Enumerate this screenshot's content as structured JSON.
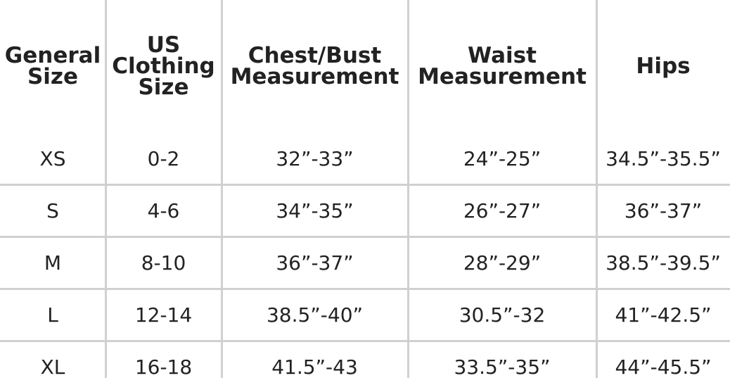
{
  "table": {
    "header": [
      "General Size",
      "US Clothing Size",
      "Chest/Bust Measurement",
      "Waist Measurement",
      "Hips"
    ],
    "rows": [
      [
        "XS",
        "0-2",
        "32”-33”",
        "24”-25”",
        "34.5”-35.5”"
      ],
      [
        "S",
        "4-6",
        "34”-35”",
        "26”-27”",
        "36”-37”"
      ],
      [
        "M",
        "8-10",
        "36”-37”",
        "28”-29”",
        "38.5”-39.5”"
      ],
      [
        "L",
        "12-14",
        "38.5”-40”",
        "30.5”-32",
        "41”-42.5”"
      ],
      [
        "XL",
        "16-18",
        "41.5”-43",
        "33.5”-35”",
        "44”-45.5”"
      ]
    ]
  }
}
